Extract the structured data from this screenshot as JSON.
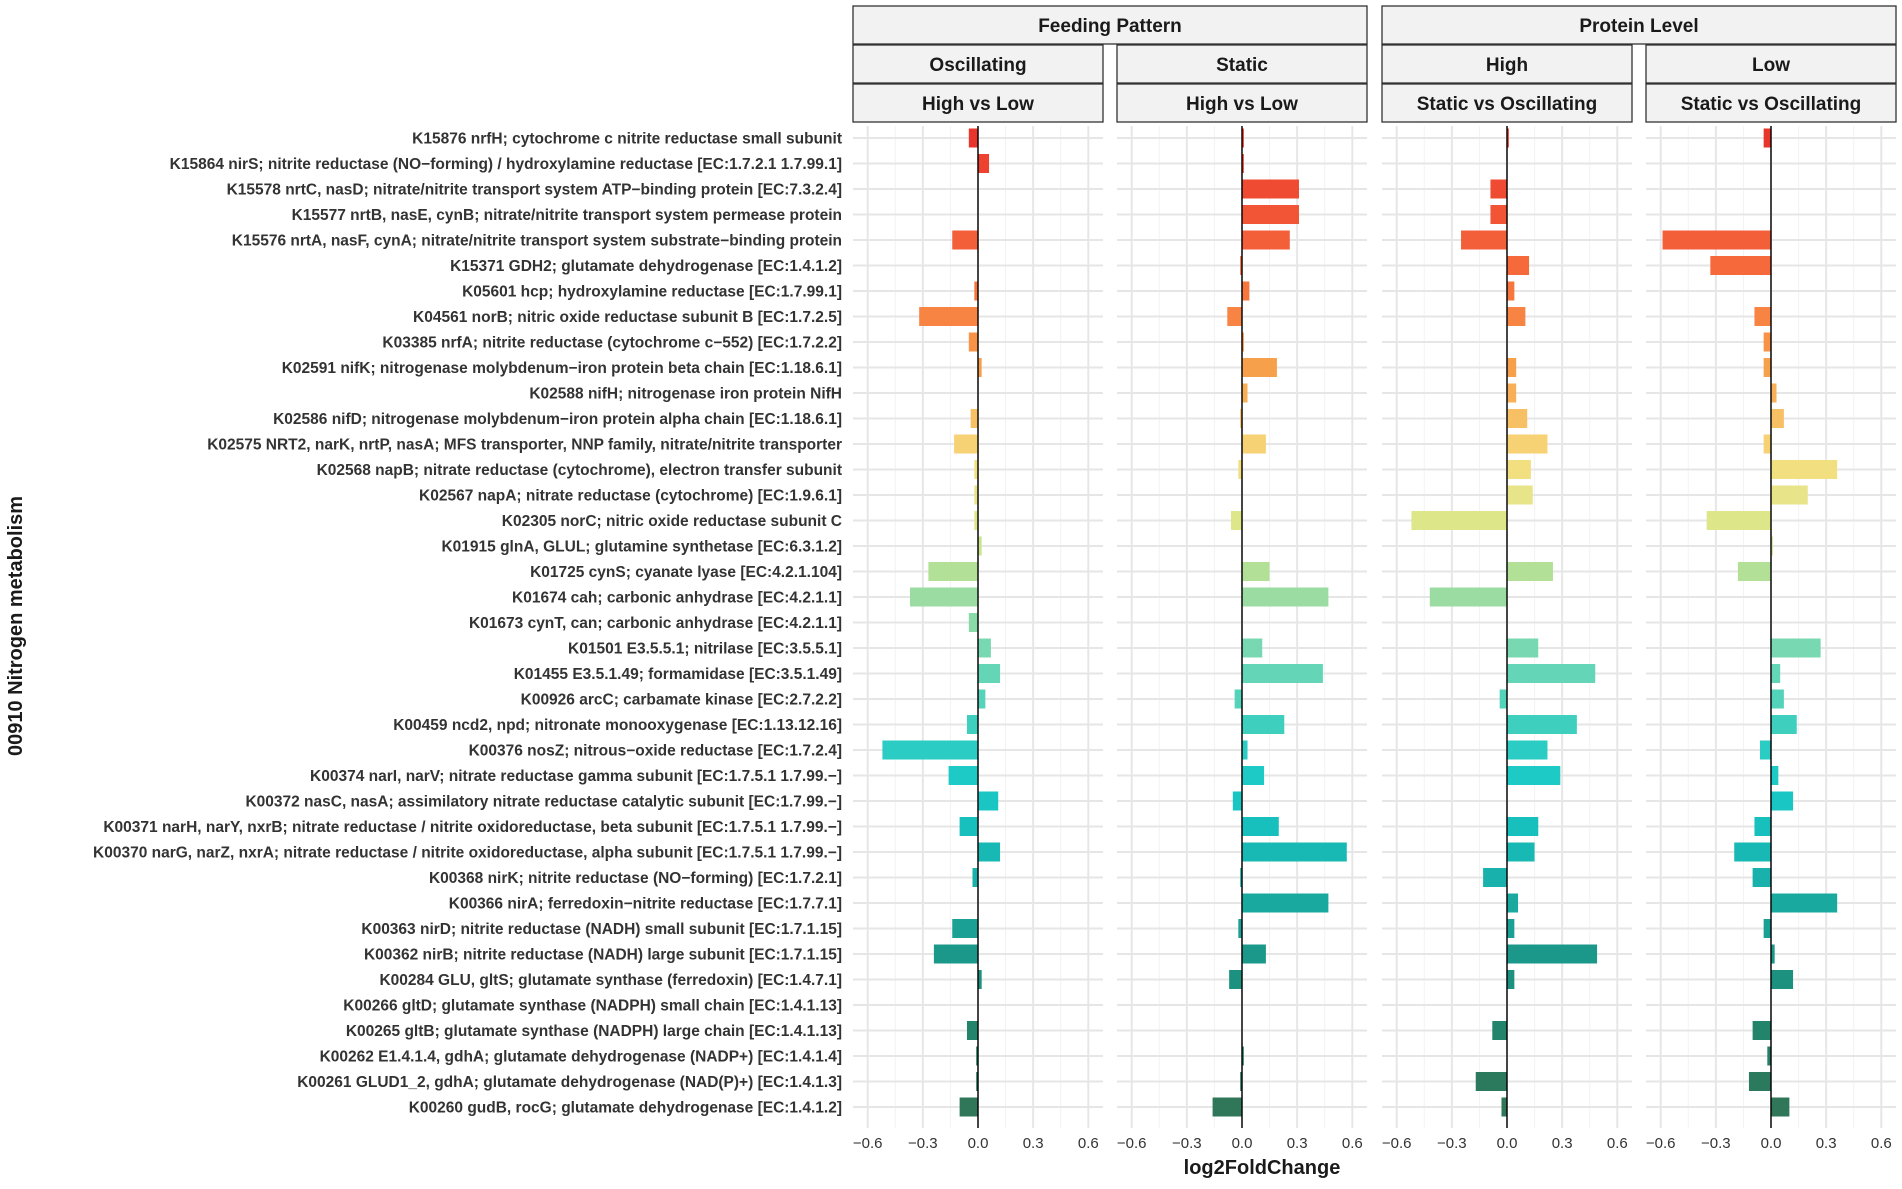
{
  "chart_data": {
    "type": "bar",
    "orientation": "horizontal",
    "xlabel": "log2FoldChange",
    "ylabel": "00910 Nitrogen metabolism",
    "xlim": [
      -0.68,
      0.68
    ],
    "xticks": [
      -0.6,
      -0.3,
      0.0,
      0.3,
      0.6
    ],
    "xtick_labels": [
      "−0.6",
      "−0.3",
      "0.0",
      "0.3",
      "0.6"
    ],
    "facet_groups": [
      {
        "label": "Feeding Pattern",
        "panels": [
          0,
          1
        ]
      },
      {
        "label": "Protein Level",
        "panels": [
          2,
          3
        ]
      }
    ],
    "panels": [
      {
        "level": "Oscillating",
        "comparison": "High vs Low"
      },
      {
        "level": "Static",
        "comparison": "High vs Low"
      },
      {
        "level": "High",
        "comparison": "Static vs Oscillating"
      },
      {
        "level": "Low",
        "comparison": "Static vs Oscillating"
      }
    ],
    "categories": [
      "K15876  nrfH; cytochrome c nitrite reductase small subunit",
      "K15864  nirS; nitrite reductase (NO−forming) / hydroxylamine reductase [EC:1.7.2.1 1.7.99.1]",
      "K15578  nrtC, nasD; nitrate/nitrite transport system ATP−binding protein [EC:7.3.2.4]",
      "K15577  nrtB, nasE, cynB; nitrate/nitrite transport system permease protein",
      "K15576  nrtA, nasF, cynA; nitrate/nitrite transport system substrate−binding protein",
      "K15371  GDH2; glutamate dehydrogenase [EC:1.4.1.2]",
      "K05601  hcp; hydroxylamine reductase [EC:1.7.99.1]",
      "K04561  norB; nitric oxide reductase subunit B [EC:1.7.2.5]",
      "K03385  nrfA; nitrite reductase (cytochrome c−552) [EC:1.7.2.2]",
      "K02591  nifK; nitrogenase molybdenum−iron protein beta chain [EC:1.18.6.1]",
      "K02588  nifH; nitrogenase iron protein NifH",
      "K02586  nifD; nitrogenase molybdenum−iron protein alpha chain [EC:1.18.6.1]",
      "K02575  NRT2, narK, nrtP, nasA; MFS transporter, NNP family, nitrate/nitrite transporter",
      "K02568  napB; nitrate reductase (cytochrome), electron transfer subunit",
      "K02567  napA; nitrate reductase (cytochrome) [EC:1.9.6.1]",
      "K02305  norC; nitric oxide reductase subunit C",
      "K01915  glnA, GLUL; glutamine synthetase [EC:6.3.1.2]",
      "K01725  cynS; cyanate lyase [EC:4.2.1.104]",
      "K01674  cah; carbonic anhydrase [EC:4.2.1.1]",
      "K01673  cynT, can; carbonic anhydrase [EC:4.2.1.1]",
      "K01501  E3.5.5.1; nitrilase [EC:3.5.5.1]",
      "K01455  E3.5.1.49; formamidase [EC:3.5.1.49]",
      "K00926  arcC; carbamate kinase [EC:2.7.2.2]",
      "K00459  ncd2, npd; nitronate monooxygenase [EC:1.13.12.16]",
      "K00376  nosZ; nitrous−oxide reductase [EC:1.7.2.4]",
      "K00374  narI, narV; nitrate reductase gamma subunit [EC:1.7.5.1 1.7.99.−]",
      "K00372  nasC, nasA; assimilatory nitrate reductase catalytic subunit [EC:1.7.99.−]",
      "K00371  narH, narY, nxrB; nitrate reductase / nitrite oxidoreductase, beta subunit [EC:1.7.5.1 1.7.99.−]",
      "K00370  narG, narZ, nxrA; nitrate reductase / nitrite oxidoreductase, alpha subunit [EC:1.7.5.1 1.7.99.−]",
      "K00368  nirK; nitrite reductase (NO−forming) [EC:1.7.2.1]",
      "K00366  nirA; ferredoxin−nitrite reductase [EC:1.7.7.1]",
      "K00363  nirD; nitrite reductase (NADH) small subunit [EC:1.7.1.15]",
      "K00362  nirB; nitrite reductase (NADH) large subunit [EC:1.7.1.15]",
      "K00284  GLU, gltS; glutamate synthase (ferredoxin) [EC:1.4.7.1]",
      "K00266  gltD; glutamate synthase (NADPH) small chain [EC:1.4.1.13]",
      "K00265  gltB; glutamate synthase (NADPH) large chain [EC:1.4.1.13]",
      "K00262  E1.4.1.4, gdhA; glutamate dehydrogenase (NADP+) [EC:1.4.1.4]",
      "K00261  GLUD1_2, gdhA; glutamate dehydrogenase (NAD(P)+) [EC:1.4.1.3]",
      "K00260  gudB, rocG; glutamate dehydrogenase [EC:1.4.1.2]"
    ],
    "colors": [
      "#e8362c",
      "#ec422f",
      "#ef4b32",
      "#f15535",
      "#f35f38",
      "#f5693b",
      "#f6763e",
      "#f78442",
      "#f89246",
      "#f7a04c",
      "#f7b058",
      "#f7c064",
      "#f6d274",
      "#f2df80",
      "#e8e48a",
      "#dde789",
      "#c9e58f",
      "#b2e097",
      "#9bdca2",
      "#8ad9a8",
      "#78d8b2",
      "#64d6b7",
      "#52d3ba",
      "#3ecfbe",
      "#2accc3",
      "#1ecac5",
      "#1ac6c3",
      "#18c0bd",
      "#18b9b5",
      "#18b1ab",
      "#19a99f",
      "#1aa095",
      "#1b988a",
      "#1d917f",
      "#208a75",
      "#23846c",
      "#267f64",
      "#2b7a5d",
      "#2f7758"
    ],
    "series": [
      {
        "name": "Feeding Pattern / Oscillating / High vs Low",
        "values": [
          -0.05,
          0.06,
          0.0,
          0.0,
          -0.14,
          0.0,
          -0.02,
          -0.32,
          -0.05,
          0.02,
          0.0,
          -0.04,
          -0.13,
          -0.02,
          -0.02,
          -0.02,
          0.02,
          -0.27,
          -0.37,
          -0.05,
          0.07,
          0.12,
          0.04,
          -0.06,
          -0.52,
          -0.16,
          0.11,
          -0.1,
          0.12,
          -0.03,
          0.0,
          -0.14,
          -0.24,
          0.02,
          0.0,
          -0.06,
          -0.01,
          -0.01,
          -0.1
        ]
      },
      {
        "name": "Feeding Pattern / Static / High vs Low",
        "values": [
          0.01,
          0.01,
          0.31,
          0.31,
          0.26,
          -0.01,
          0.04,
          -0.08,
          0.01,
          0.19,
          0.03,
          -0.01,
          0.13,
          -0.02,
          0.0,
          -0.06,
          0.0,
          0.15,
          0.47,
          0.0,
          0.11,
          0.44,
          -0.04,
          0.23,
          0.03,
          0.12,
          -0.05,
          0.2,
          0.57,
          -0.01,
          0.47,
          -0.02,
          0.13,
          -0.07,
          0.0,
          0.0,
          0.01,
          -0.01,
          -0.16
        ]
      },
      {
        "name": "Protein Level / High / Static vs Oscillating",
        "values": [
          0.01,
          0.0,
          -0.09,
          -0.09,
          -0.25,
          0.12,
          0.04,
          0.1,
          0.0,
          0.05,
          0.05,
          0.11,
          0.22,
          0.13,
          0.14,
          -0.52,
          0.0,
          0.25,
          -0.42,
          0.0,
          0.17,
          0.48,
          -0.04,
          0.38,
          0.22,
          0.29,
          0.0,
          0.17,
          0.15,
          -0.13,
          0.06,
          0.04,
          0.49,
          0.04,
          0.0,
          -0.08,
          0.0,
          -0.17,
          -0.03
        ]
      },
      {
        "name": "Protein Level / Low / Static vs Oscillating",
        "values": [
          -0.04,
          0.0,
          0.0,
          0.0,
          -0.59,
          -0.33,
          0.0,
          -0.09,
          -0.04,
          -0.04,
          0.03,
          0.07,
          -0.04,
          0.36,
          0.2,
          -0.35,
          0.01,
          -0.18,
          0.0,
          0.0,
          0.27,
          0.05,
          0.07,
          0.14,
          -0.06,
          0.04,
          0.12,
          -0.09,
          -0.2,
          -0.1,
          0.36,
          -0.04,
          0.02,
          0.12,
          0.0,
          -0.1,
          -0.02,
          -0.12,
          0.1
        ]
      }
    ]
  }
}
